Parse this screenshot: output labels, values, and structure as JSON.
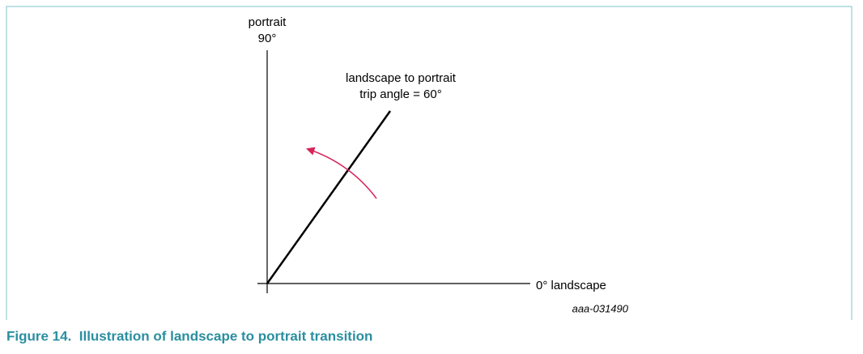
{
  "axes": {
    "vertical_label": "portrait",
    "vertical_angle": "90°",
    "horizontal_label": "0° landscape"
  },
  "trip_line": {
    "label_line1": "landscape to portrait",
    "label_line2": "trip angle = 60°"
  },
  "figure_code": "aaa-031490",
  "caption": "Figure 14.  Illustration of landscape to portrait transition"
}
